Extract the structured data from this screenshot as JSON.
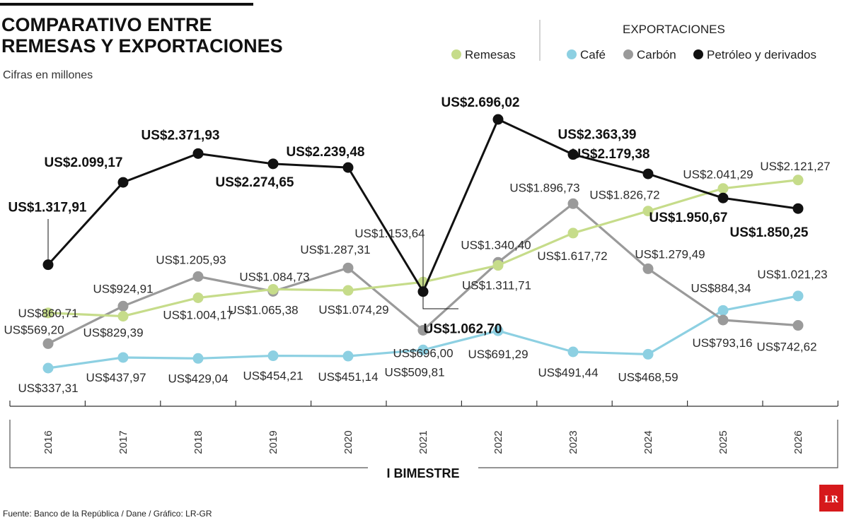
{
  "chart_data": {
    "type": "line",
    "title_lines": [
      "COMPARATIVO ENTRE",
      "REMESAS Y EXPORTACIONES"
    ],
    "subtitle": "Cifras en millones",
    "legend_group_label": "EXPORTACIONES",
    "xlabel": "I BIMESTRE",
    "categories": [
      "2016",
      "2017",
      "2018",
      "2019",
      "2020",
      "2021",
      "2022",
      "2023",
      "2024",
      "2025",
      "2026"
    ],
    "ylim": [
      300,
      2800
    ],
    "grid": false,
    "legend_position": "top-right",
    "series": [
      {
        "name": "Remesas",
        "color": "#c6dc8a",
        "values": [
          860.71,
          829.39,
          1004.17,
          1084.73,
          1074.29,
          1153.64,
          1311.71,
          1617.72,
          1826.72,
          2041.29,
          2121.27
        ],
        "labels": [
          "US$860,71",
          "US$829,39",
          "US$1.004,17",
          "US$1.084,73",
          "US$1.074,29",
          "US$1.153,64",
          "US$1.311,71",
          "US$1.617,72",
          "US$1.826,72",
          "US$2.041,29",
          "US$2.121,27"
        ]
      },
      {
        "name": "Café",
        "color": "#8dd0e2",
        "values": [
          337.31,
          437.97,
          429.04,
          454.21,
          451.14,
          509.81,
          691.29,
          491.44,
          468.59,
          884.34,
          1021.23
        ],
        "labels": [
          "US$337,31",
          "US$437,97",
          "US$429,04",
          "US$454,21",
          "US$451,14",
          "US$509,81",
          "US$691,29",
          "US$491,44",
          "US$468,59",
          "US$884,34",
          "US$1.021,23"
        ]
      },
      {
        "name": "Carbón",
        "color": "#9a9a9a",
        "values": [
          569.2,
          924.91,
          1205.93,
          1065.38,
          1287.31,
          696.0,
          1340.4,
          1896.73,
          1279.49,
          793.16,
          742.62
        ],
        "labels": [
          "US$569,20",
          "US$924,91",
          "US$1.205,93",
          "US$1.065,38",
          "US$1.287,31",
          "US$696,00",
          "US$1.340,40",
          "US$1.896,73",
          "US$1.279,49",
          "US$793,16",
          "US$742,62"
        ]
      },
      {
        "name": "Petróleo y derivados",
        "color": "#111111",
        "values": [
          1317.91,
          2099.17,
          2371.93,
          2274.65,
          2239.48,
          1062.7,
          2696.02,
          2363.39,
          2179.38,
          1950.67,
          1850.25
        ],
        "labels": [
          "US$1.317,91",
          "US$2.099,17",
          "US$2.371,93",
          "US$2.274,65",
          "US$2.239,48",
          "US$1.062,70",
          "US$2.696,02",
          "US$2.363,39",
          "US$2.179,38",
          "US$1.950,67",
          "US$1.850,25"
        ]
      }
    ]
  },
  "source": "Fuente: Banco de la República / Dane / Gráfico: LR-GR",
  "logo": "LR",
  "colors": {
    "logo_red": "#d6191b"
  }
}
